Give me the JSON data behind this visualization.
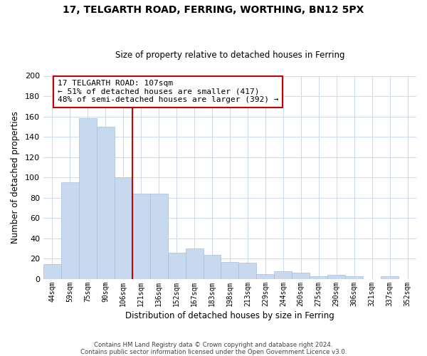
{
  "title_line1": "17, TELGARTH ROAD, FERRING, WORTHING, BN12 5PX",
  "title_line2": "Size of property relative to detached houses in Ferring",
  "xlabel": "Distribution of detached houses by size in Ferring",
  "ylabel": "Number of detached properties",
  "categories": [
    "44sqm",
    "59sqm",
    "75sqm",
    "90sqm",
    "106sqm",
    "121sqm",
    "136sqm",
    "152sqm",
    "167sqm",
    "183sqm",
    "198sqm",
    "213sqm",
    "229sqm",
    "244sqm",
    "260sqm",
    "275sqm",
    "290sqm",
    "306sqm",
    "321sqm",
    "337sqm",
    "352sqm"
  ],
  "values": [
    15,
    95,
    158,
    150,
    100,
    84,
    84,
    26,
    30,
    24,
    17,
    16,
    5,
    8,
    6,
    3,
    4,
    3,
    0,
    3,
    0
  ],
  "bar_color": "#c8d8ee",
  "bar_edge_color": "#a8bedd",
  "vline_index": 4,
  "vline_color": "#cc0000",
  "annotation_text": "17 TELGARTH ROAD: 107sqm\n← 51% of detached houses are smaller (417)\n48% of semi-detached houses are larger (392) →",
  "annotation_box_edge": "#cc0000",
  "ylim": [
    0,
    200
  ],
  "yticks": [
    0,
    20,
    40,
    60,
    80,
    100,
    120,
    140,
    160,
    180,
    200
  ],
  "footer_line1": "Contains HM Land Registry data © Crown copyright and database right 2024.",
  "footer_line2": "Contains public sector information licensed under the Open Government Licence v3.0.",
  "background_color": "#ffffff",
  "grid_color": "#ccd8ec"
}
